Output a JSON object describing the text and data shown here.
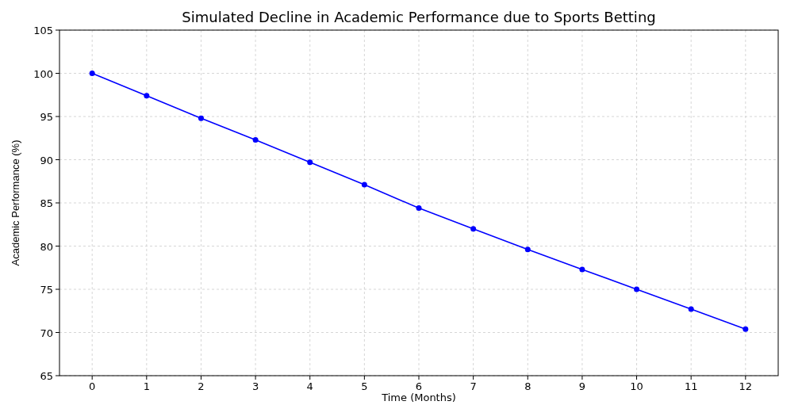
{
  "chart_data": {
    "type": "line",
    "title": "Simulated Decline in Academic Performance due to Sports Betting",
    "xlabel": "Time (Months)",
    "ylabel": "Academic Performance (%)",
    "x": [
      0,
      1,
      2,
      3,
      4,
      5,
      6,
      7,
      8,
      9,
      10,
      11,
      12
    ],
    "series": [
      {
        "color": "#0000ff",
        "values": [
          100,
          97.4,
          94.8,
          92.3,
          89.7,
          87.1,
          84.4,
          82.0,
          79.6,
          77.3,
          75.0,
          72.7,
          70.4
        ]
      }
    ],
    "xlim": [
      -0.6,
      12.6
    ],
    "xticks": [
      0,
      1,
      2,
      3,
      4,
      5,
      6,
      7,
      8,
      9,
      10,
      11,
      12
    ],
    "ylim": [
      65,
      105
    ],
    "yticks": [
      65,
      70,
      75,
      80,
      85,
      90,
      95,
      100,
      105
    ],
    "grid": true,
    "marker": "circle",
    "line_style": "solid"
  }
}
